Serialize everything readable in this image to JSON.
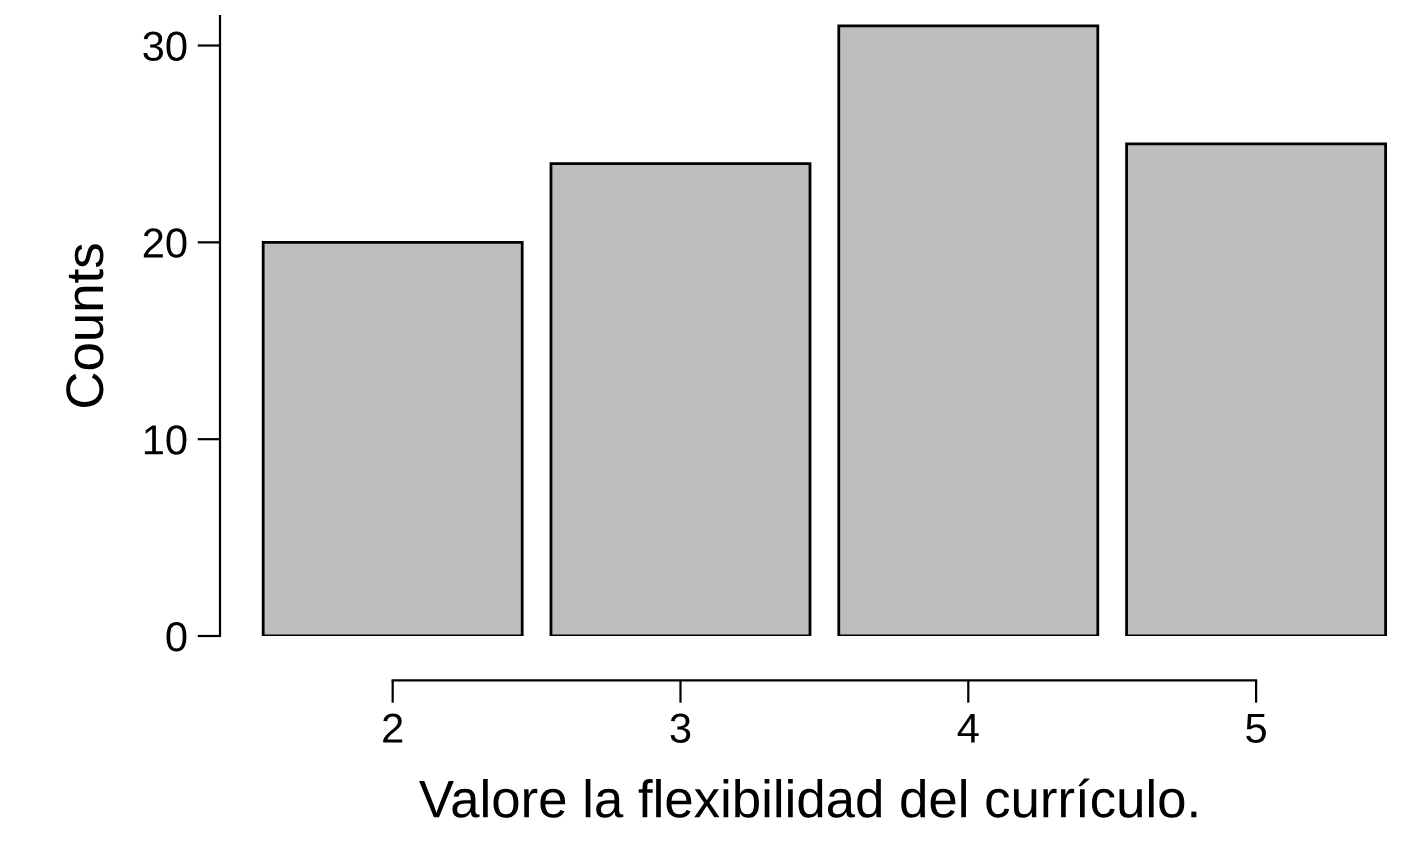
{
  "chart_data": {
    "type": "bar",
    "xlabel": "Valore la flexibilidad del currículo.",
    "ylabel": "Counts",
    "categories": [
      "2",
      "3",
      "4",
      "5"
    ],
    "values": [
      20,
      24,
      31,
      25
    ],
    "color": "#bebebe",
    "ylim": [
      0,
      31.5
    ],
    "yticks": [
      0,
      10,
      20,
      30
    ],
    "grid": false,
    "legend": false
  }
}
